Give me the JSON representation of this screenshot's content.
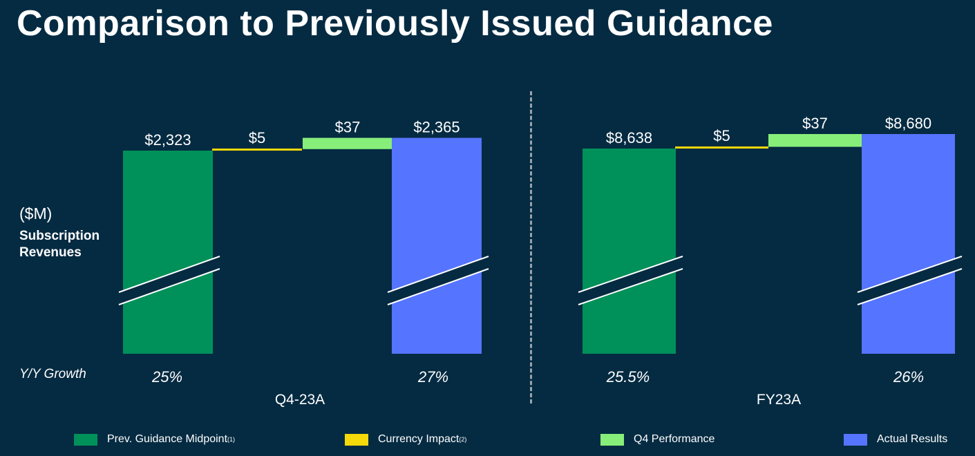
{
  "title": "Comparison to Previously Issued Guidance",
  "unit_label": "($M)",
  "metric_label": "Subscription Revenues",
  "growth_label": "Y/Y Growth",
  "colors": {
    "background": "#052b42",
    "prev_guidance": "#00905a",
    "currency": "#f5d90a",
    "q4_performance": "#87ee7a",
    "actual": "#5574ff"
  },
  "legend": [
    {
      "label": "Prev. Guidance Midpoint",
      "note": "(1)",
      "color": "#00905a"
    },
    {
      "label": "Currency Impact",
      "note": "(2)",
      "color": "#f5d90a"
    },
    {
      "label": "Q4 Performance",
      "note": "",
      "color": "#87ee7a"
    },
    {
      "label": "Actual Results",
      "note": "",
      "color": "#5574ff"
    }
  ],
  "chart_data": [
    {
      "type": "bar",
      "subtype": "waterfall",
      "panel_label": "Q4-23A",
      "categories": [
        "Prev. Guidance Midpoint",
        "Currency Impact",
        "Q4 Performance",
        "Actual Results"
      ],
      "values": [
        2323,
        5,
        37,
        2365
      ],
      "data_labels": [
        "$2,323",
        "$5",
        "$37",
        "$2,365"
      ],
      "growth": [
        "25%",
        "27%"
      ],
      "axis_break": true
    },
    {
      "type": "bar",
      "subtype": "waterfall",
      "panel_label": "FY23A",
      "categories": [
        "Prev. Guidance Midpoint",
        "Currency Impact",
        "Q4 Performance",
        "Actual Results"
      ],
      "values": [
        8638,
        5,
        37,
        8680
      ],
      "data_labels": [
        "$8,638",
        "$5",
        "$37",
        "$8,680"
      ],
      "growth": [
        "25.5%",
        "26%"
      ],
      "axis_break": true
    }
  ]
}
